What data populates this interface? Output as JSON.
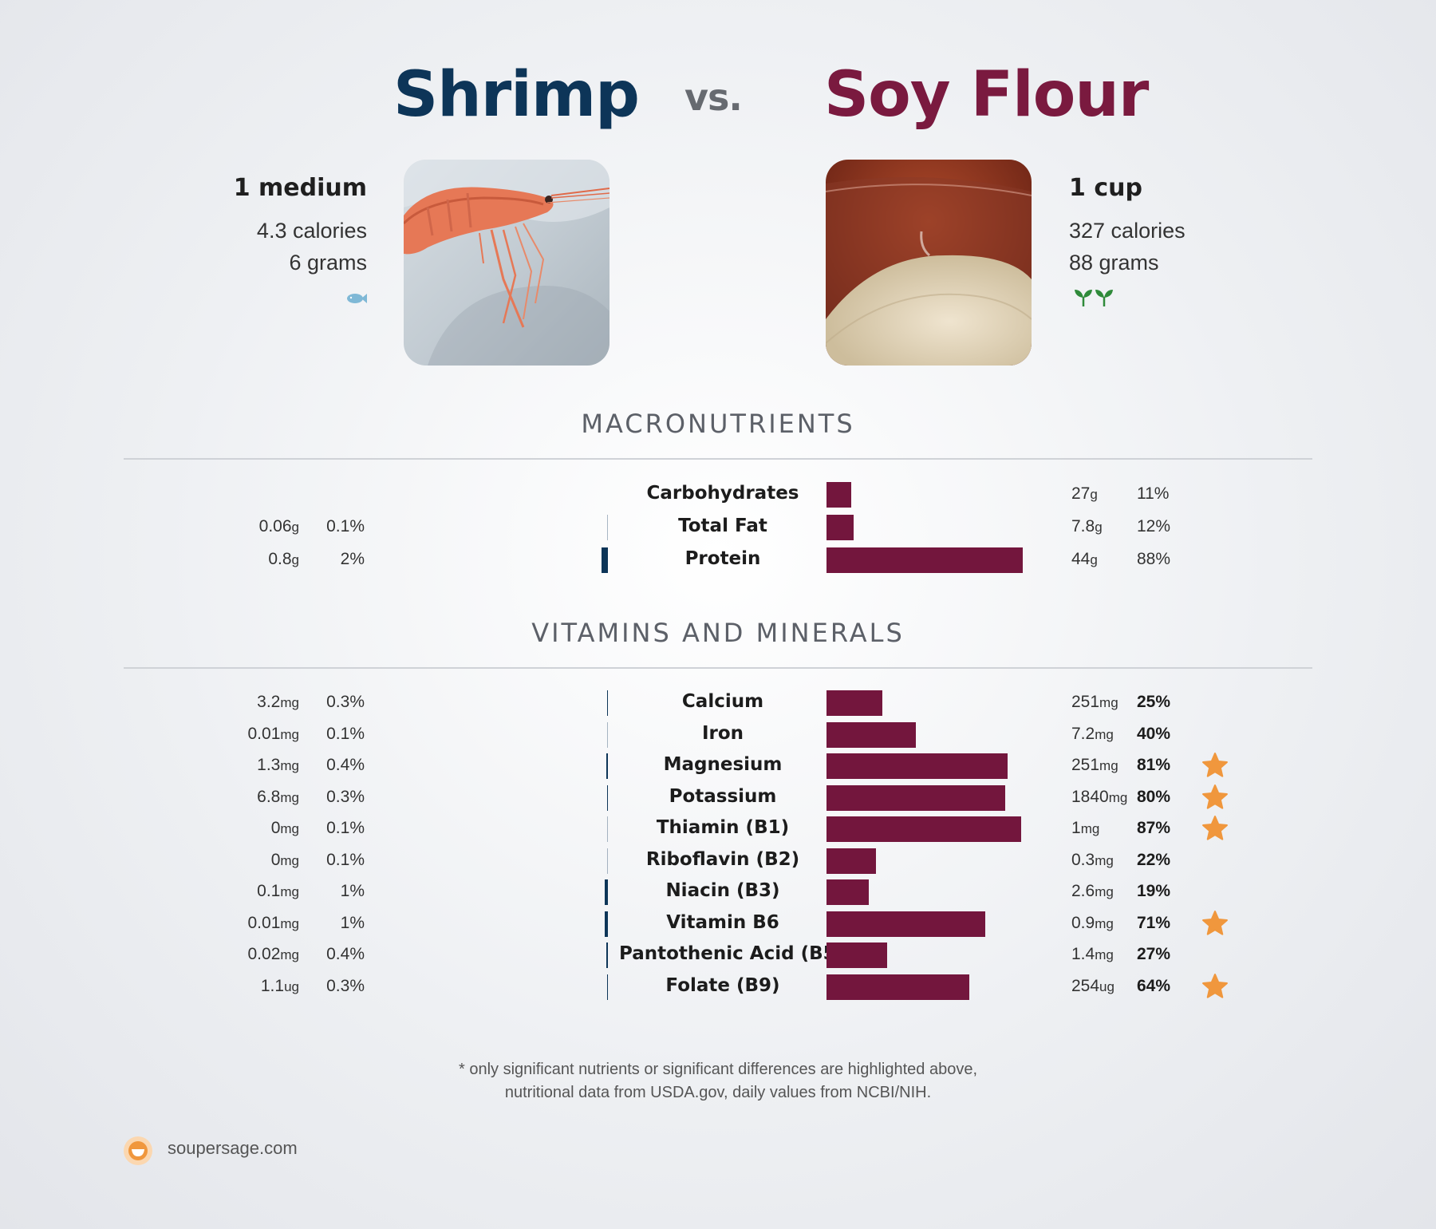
{
  "header": {
    "left_title": "Shrimp",
    "vs": "vs.",
    "right_title": "Soy Flour"
  },
  "left_food": {
    "serving": "1 medium",
    "calories": "4.3 calories",
    "grams": "6 grams",
    "icon": "fish-icon",
    "photo": "shrimp-photo",
    "bar_color": "#0d3558"
  },
  "right_food": {
    "serving": "1 cup",
    "calories": "327 calories",
    "grams": "88 grams",
    "icon": "sprout-icon",
    "photo": "soy-flour-photo",
    "bar_color": "#73163d"
  },
  "sections": {
    "macros": "MACRONUTRIENTS",
    "vitamins": "VITAMINS AND MINERALS"
  },
  "chart_data": {
    "type": "bar",
    "orientation": "horizontal-diverging",
    "series": [
      {
        "name": "Shrimp",
        "color": "#0d3558"
      },
      {
        "name": "Soy Flour",
        "color": "#73163d"
      }
    ],
    "max_pct": 100,
    "macronutrients": [
      {
        "name": "Carbohydrates",
        "left_value": "",
        "left_unit": "",
        "left_pct_label": "",
        "left_pct": 0,
        "right_value": "27",
        "right_unit": "g",
        "right_pct_label": "11%",
        "right_pct": 11,
        "right_bold": false,
        "star": false
      },
      {
        "name": "Total Fat",
        "left_value": "0.06",
        "left_unit": "g",
        "left_pct_label": "0.1%",
        "left_pct": 0.1,
        "right_value": "7.8",
        "right_unit": "g",
        "right_pct_label": "12%",
        "right_pct": 12,
        "right_bold": false,
        "star": false
      },
      {
        "name": "Protein",
        "left_value": "0.8",
        "left_unit": "g",
        "left_pct_label": "2%",
        "left_pct": 2,
        "right_value": "44",
        "right_unit": "g",
        "right_pct_label": "88%",
        "right_pct": 88,
        "right_bold": false,
        "star": false
      }
    ],
    "vitamins_minerals": [
      {
        "name": "Calcium",
        "left_value": "3.2",
        "left_unit": "mg",
        "left_pct_label": "0.3%",
        "left_pct": 0.3,
        "right_value": "251",
        "right_unit": "mg",
        "right_pct_label": "25%",
        "right_pct": 25,
        "right_bold": true,
        "star": false
      },
      {
        "name": "Iron",
        "left_value": "0.01",
        "left_unit": "mg",
        "left_pct_label": "0.1%",
        "left_pct": 0.1,
        "right_value": "7.2",
        "right_unit": "mg",
        "right_pct_label": "40%",
        "right_pct": 40,
        "right_bold": true,
        "star": false
      },
      {
        "name": "Magnesium",
        "left_value": "1.3",
        "left_unit": "mg",
        "left_pct_label": "0.4%",
        "left_pct": 0.4,
        "right_value": "251",
        "right_unit": "mg",
        "right_pct_label": "81%",
        "right_pct": 81,
        "right_bold": true,
        "star": true
      },
      {
        "name": "Potassium",
        "left_value": "6.8",
        "left_unit": "mg",
        "left_pct_label": "0.3%",
        "left_pct": 0.3,
        "right_value": "1840",
        "right_unit": "mg",
        "right_pct_label": "80%",
        "right_pct": 80,
        "right_bold": true,
        "star": true
      },
      {
        "name": "Thiamin (B1)",
        "left_value": "0",
        "left_unit": "mg",
        "left_pct_label": "0.1%",
        "left_pct": 0.1,
        "right_value": "1",
        "right_unit": "mg",
        "right_pct_label": "87%",
        "right_pct": 87,
        "right_bold": true,
        "star": true
      },
      {
        "name": "Riboflavin (B2)",
        "left_value": "0",
        "left_unit": "mg",
        "left_pct_label": "0.1%",
        "left_pct": 0.1,
        "right_value": "0.3",
        "right_unit": "mg",
        "right_pct_label": "22%",
        "right_pct": 22,
        "right_bold": true,
        "star": false
      },
      {
        "name": "Niacin (B3)",
        "left_value": "0.1",
        "left_unit": "mg",
        "left_pct_label": "1%",
        "left_pct": 1,
        "right_value": "2.6",
        "right_unit": "mg",
        "right_pct_label": "19%",
        "right_pct": 19,
        "right_bold": true,
        "star": false
      },
      {
        "name": "Vitamin B6",
        "left_value": "0.01",
        "left_unit": "mg",
        "left_pct_label": "1%",
        "left_pct": 1,
        "right_value": "0.9",
        "right_unit": "mg",
        "right_pct_label": "71%",
        "right_pct": 71,
        "right_bold": true,
        "star": true
      },
      {
        "name": "Pantothenic Acid (B5)",
        "left_value": "0.02",
        "left_unit": "mg",
        "left_pct_label": "0.4%",
        "left_pct": 0.4,
        "right_value": "1.4",
        "right_unit": "mg",
        "right_pct_label": "27%",
        "right_pct": 27,
        "right_bold": true,
        "star": false
      },
      {
        "name": "Folate (B9)",
        "left_value": "1.1",
        "left_unit": "ug",
        "left_pct_label": "0.3%",
        "left_pct": 0.3,
        "right_value": "254",
        "right_unit": "ug",
        "right_pct_label": "64%",
        "right_pct": 64,
        "right_bold": true,
        "star": true
      }
    ]
  },
  "footnote": {
    "line1": "* only significant nutrients or significant differences are highlighted above,",
    "line2": "nutritional data from USDA.gov, daily values from NCBI/NIH."
  },
  "brand": {
    "name": "soupersage.com",
    "star_color": "#f0973d"
  }
}
